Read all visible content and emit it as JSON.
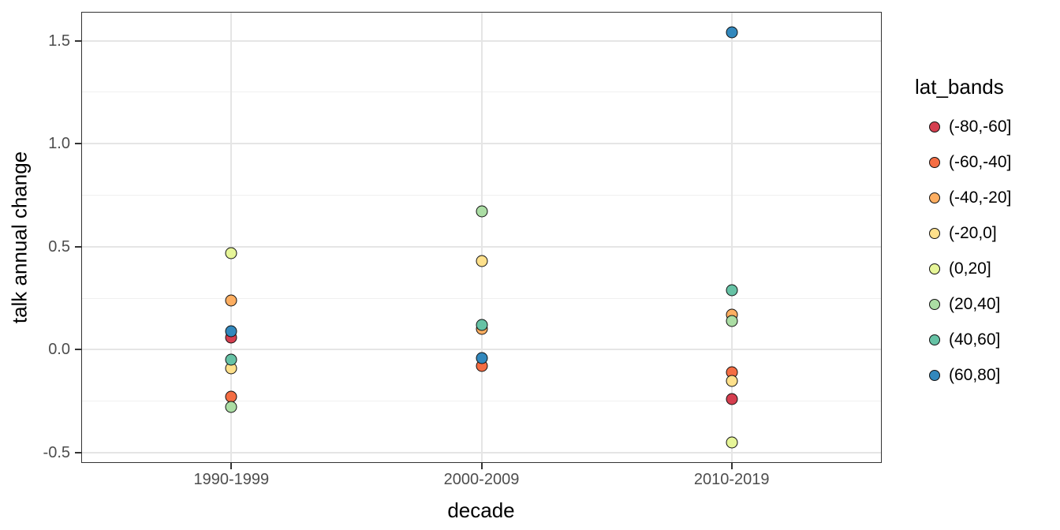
{
  "legend": {
    "title": "lat_bands",
    "items": [
      {
        "label": "(-80,-60]",
        "color": "#D53E4F"
      },
      {
        "label": "(-60,-40]",
        "color": "#F46D43"
      },
      {
        "label": "(-40,-20]",
        "color": "#FDAE61"
      },
      {
        "label": "(-20,0]",
        "color": "#FEE08B"
      },
      {
        "label": "(0,20]",
        "color": "#E6F598"
      },
      {
        "label": "(20,40]",
        "color": "#ABDDA4"
      },
      {
        "label": "(40,60]",
        "color": "#66C2A5"
      },
      {
        "label": "(60,80]",
        "color": "#3288BD"
      }
    ]
  },
  "chart_data": {
    "type": "scatter",
    "title": "",
    "xlabel": "decade",
    "ylabel": "talk annual change",
    "categories": [
      "1990-1999",
      "2000-2009",
      "2010-2019"
    ],
    "y_ticks": [
      1.5,
      1.0,
      0.5,
      0.0,
      -0.5
    ],
    "y_tick_labels": [
      "1.5",
      "1.0",
      "0.5",
      "0.0",
      "-0.5"
    ],
    "ylim": [
      -0.55,
      1.64
    ],
    "grid": "major and minor horizontal, major vertical at categories",
    "legend_position": "right",
    "legend_title": "lat_bands",
    "point_style": "filled circle with black outline",
    "series": [
      {
        "name": "(-80,-60]",
        "color": "#D53E4F",
        "points": [
          [
            "1990-1999",
            0.06
          ],
          [
            "2010-2019",
            -0.24
          ]
        ]
      },
      {
        "name": "(-60,-40]",
        "color": "#F46D43",
        "points": [
          [
            "1990-1999",
            -0.23
          ],
          [
            "2000-2009",
            -0.08
          ],
          [
            "2010-2019",
            -0.11
          ]
        ]
      },
      {
        "name": "(-40,-20]",
        "color": "#FDAE61",
        "points": [
          [
            "1990-1999",
            0.24
          ],
          [
            "2000-2009",
            0.1
          ],
          [
            "2010-2019",
            0.17
          ]
        ]
      },
      {
        "name": "(-20,0]",
        "color": "#FEE08B",
        "points": [
          [
            "1990-1999",
            -0.09
          ],
          [
            "2000-2009",
            0.43
          ],
          [
            "2010-2019",
            -0.15
          ]
        ]
      },
      {
        "name": "(0,20]",
        "color": "#E6F598",
        "points": [
          [
            "1990-1999",
            0.47
          ],
          [
            "2010-2019",
            -0.45
          ]
        ]
      },
      {
        "name": "(20,40]",
        "color": "#ABDDA4",
        "points": [
          [
            "1990-1999",
            -0.28
          ],
          [
            "2000-2009",
            0.67
          ],
          [
            "2010-2019",
            0.14
          ]
        ]
      },
      {
        "name": "(40,60]",
        "color": "#66C2A5",
        "points": [
          [
            "1990-1999",
            -0.05
          ],
          [
            "2000-2009",
            0.12
          ],
          [
            "2010-2019",
            0.29
          ]
        ]
      },
      {
        "name": "(60,80]",
        "color": "#3288BD",
        "points": [
          [
            "1990-1999",
            0.09
          ],
          [
            "2000-2009",
            -0.04
          ],
          [
            "2010-2019",
            1.54
          ]
        ]
      }
    ]
  }
}
